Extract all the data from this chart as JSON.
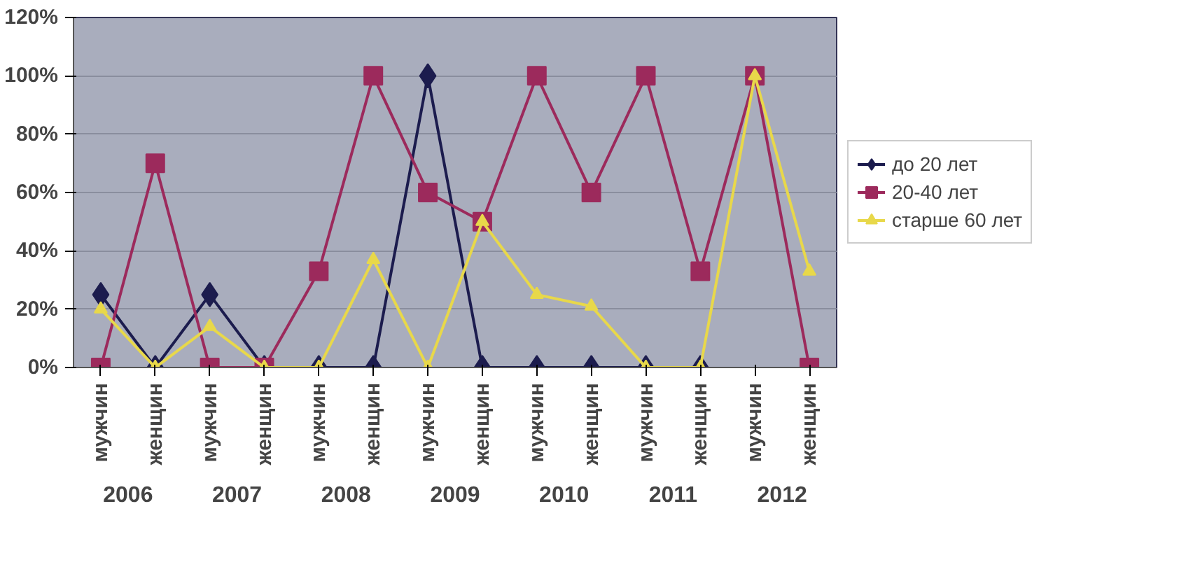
{
  "chart_data": {
    "type": "line",
    "categories": [
      "мужчин",
      "женщин",
      "мужчин",
      "женщин",
      "мужчин",
      "женщин",
      "мужчин",
      "женщин",
      "мужчин",
      "женщин",
      "мужчин",
      "женщин",
      "мужчин",
      "женщин"
    ],
    "annotations": [
      "2006",
      "2007",
      "2008",
      "2009",
      "2010",
      "2011",
      "2012"
    ],
    "series": [
      {
        "name": "до 20 лет",
        "color": "#1c1c4e",
        "marker": "diamond",
        "values": [
          25,
          0,
          25,
          0,
          0,
          0,
          100,
          0,
          0,
          0,
          0,
          0,
          null,
          null
        ]
      },
      {
        "name": "20-40 лет",
        "color": "#9c2a5c",
        "marker": "square",
        "values": [
          0,
          70,
          0,
          0,
          33,
          100,
          60,
          50,
          100,
          60,
          100,
          33,
          100,
          0
        ]
      },
      {
        "name": "старше 60 лет",
        "color": "#e8d84a",
        "marker": "triangle",
        "values": [
          20,
          0,
          14,
          0,
          0,
          37,
          0,
          50,
          25,
          21,
          0,
          0,
          100,
          33
        ]
      }
    ],
    "ylim": [
      0,
      120
    ],
    "yticks": [
      {
        "value": 0,
        "label": "0%"
      },
      {
        "value": 20,
        "label": "20%"
      },
      {
        "value": 40,
        "label": "40%"
      },
      {
        "value": 60,
        "label": "60%"
      },
      {
        "value": 80,
        "label": "80%"
      },
      {
        "value": 100,
        "label": "100%"
      },
      {
        "value": 120,
        "label": "120%"
      }
    ],
    "grid": "y",
    "legend": "right",
    "line_style": "solid"
  }
}
